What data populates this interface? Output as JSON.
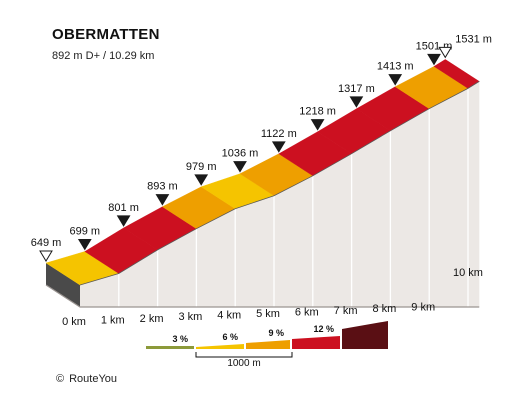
{
  "title": "OBERMATTEN",
  "subtitle": "892 m D+ / 10.29 km",
  "copyright": "RouteYou",
  "copyright_symbol": "©",
  "colors": {
    "3": "#8c9a3a",
    "6": "#f5c400",
    "9": "#ee9f00",
    "12": "#cc1020",
    "15": "#5a0f14",
    "side": "#ece8e5",
    "side_edge": "#9a9491",
    "endcap": "#4a4a4a"
  },
  "chart_data": {
    "type": "area",
    "title": "OBERMATTEN",
    "subtitle": "892 m D+ / 10.29 km",
    "x_unit": "km",
    "y_unit": "m",
    "distance": [
      0,
      1,
      2,
      3,
      4,
      5,
      6,
      7,
      8,
      9,
      10
    ],
    "distance_labels": [
      "0 km",
      "1 km",
      "2 km",
      "3 km",
      "4 km",
      "5 km",
      "6 km",
      "7 km",
      "8 km",
      "9 km",
      "10 km"
    ],
    "elevation": [
      649,
      699,
      801,
      893,
      979,
      1036,
      1122,
      1218,
      1317,
      1413,
      1501
    ],
    "elevation_labels": [
      "649 m",
      "699 m",
      "801 m",
      "893 m",
      "979 m",
      "1036 m",
      "1122 m",
      "1218 m",
      "1317 m",
      "1413 m",
      "1501 m"
    ],
    "end": {
      "distance": 10.29,
      "elevation": 1531,
      "label": "1531 m"
    },
    "segment_gradient_class": [
      6,
      12,
      12,
      9,
      6,
      9,
      12,
      12,
      12,
      9,
      12
    ],
    "legend": {
      "entries": [
        {
          "label": "3 %",
          "cls": "3"
        },
        {
          "label": "6 %",
          "cls": "6"
        },
        {
          "label": "9 %",
          "cls": "9"
        },
        {
          "label": "12 %",
          "cls": "12"
        },
        {
          "label": "",
          "cls": "15"
        }
      ],
      "scale_label": "1000 m"
    }
  }
}
